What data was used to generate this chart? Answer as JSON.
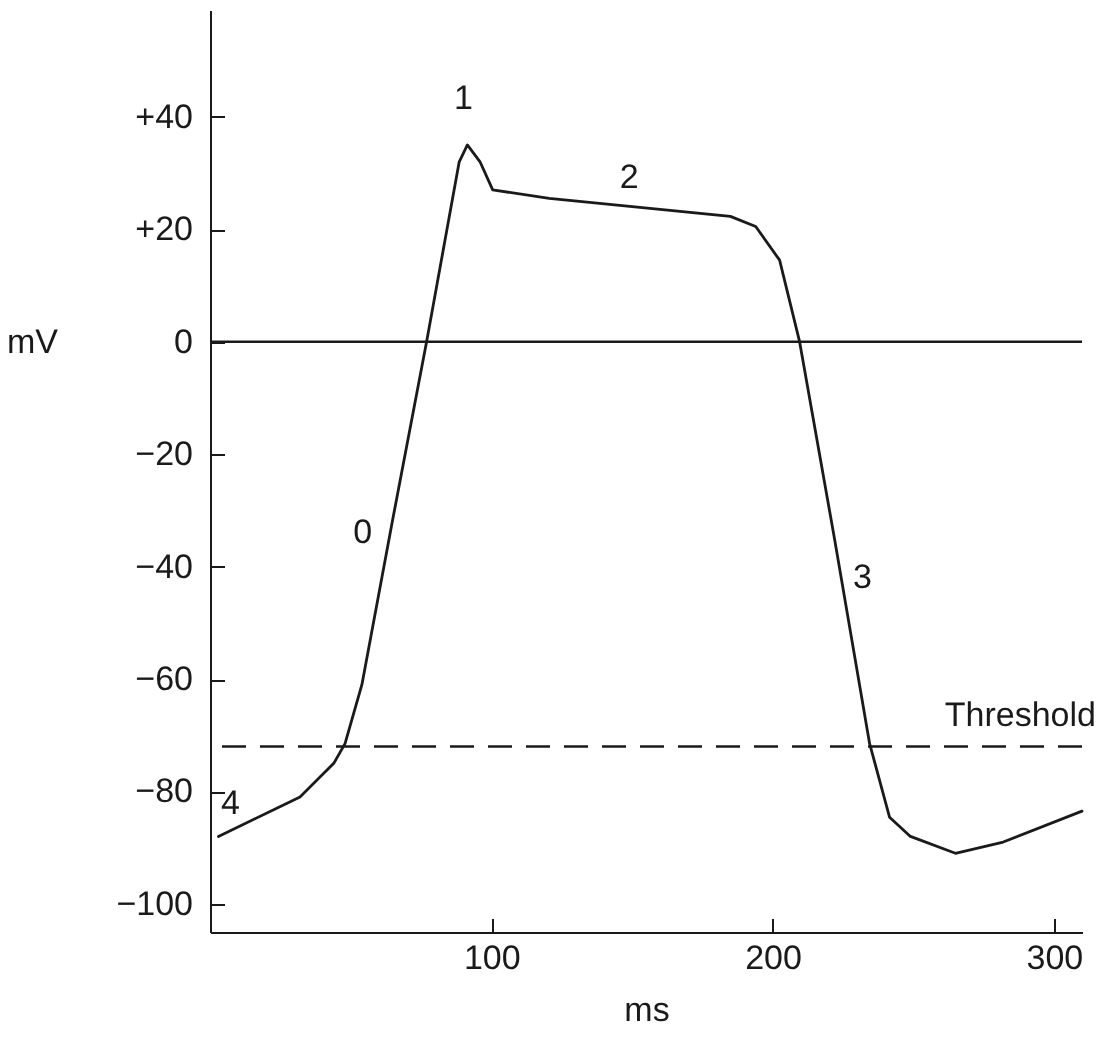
{
  "chart_data": {
    "type": "line",
    "xlabel": "ms",
    "ylabel": "mV",
    "x": [
      3,
      32,
      44,
      48,
      54,
      65,
      77,
      88.6,
      91.5,
      96,
      100.5,
      120.6,
      185,
      194,
      202.5,
      209.6,
      222,
      234.5,
      241.6,
      249,
      265,
      282,
      310
    ],
    "series": [
      {
        "color": "#1a1a1a",
        "values": [
          -88,
          -81,
          -75,
          -71.5,
          -61,
          -31.5,
          0,
          32,
          35,
          32,
          27,
          25.5,
          22.3,
          20.5,
          14.5,
          0,
          -35,
          -71.5,
          -84.6,
          -88,
          -91,
          -89,
          -83.5
        ]
      }
    ],
    "xlim": [
      0,
      310
    ],
    "ylim": [
      -105,
      59
    ],
    "xticks": [
      100,
      200,
      300
    ],
    "yticks": [
      {
        "value": 40,
        "label": "+40"
      },
      {
        "value": 20,
        "label": "+20"
      },
      0,
      {
        "value": -20,
        "label": "−20"
      },
      {
        "value": -40,
        "label": "−40"
      },
      {
        "value": -60,
        "label": "−60"
      },
      {
        "value": -80,
        "label": "−80"
      },
      {
        "value": -100,
        "label": "−100"
      }
    ],
    "ref_lines": [
      {
        "axis": "y",
        "value": 0,
        "color": "#1a1a1a",
        "line_style": "solid"
      },
      {
        "axis": "y",
        "value": -72,
        "label": "Threshold",
        "color": "#1a1a1a",
        "line_style": "dashed"
      }
    ],
    "annotations": [
      {
        "text": "0",
        "x": 65,
        "y": -31.5
      },
      {
        "text": "1",
        "x": 91.5,
        "y": 35
      },
      {
        "text": "2",
        "x": 149,
        "y": 24.1
      },
      {
        "text": "3",
        "x": 222,
        "y": -35
      },
      {
        "text": "4",
        "x": 3,
        "y": -88
      }
    ],
    "grid": false,
    "marker": "none",
    "line_style": "solid"
  }
}
